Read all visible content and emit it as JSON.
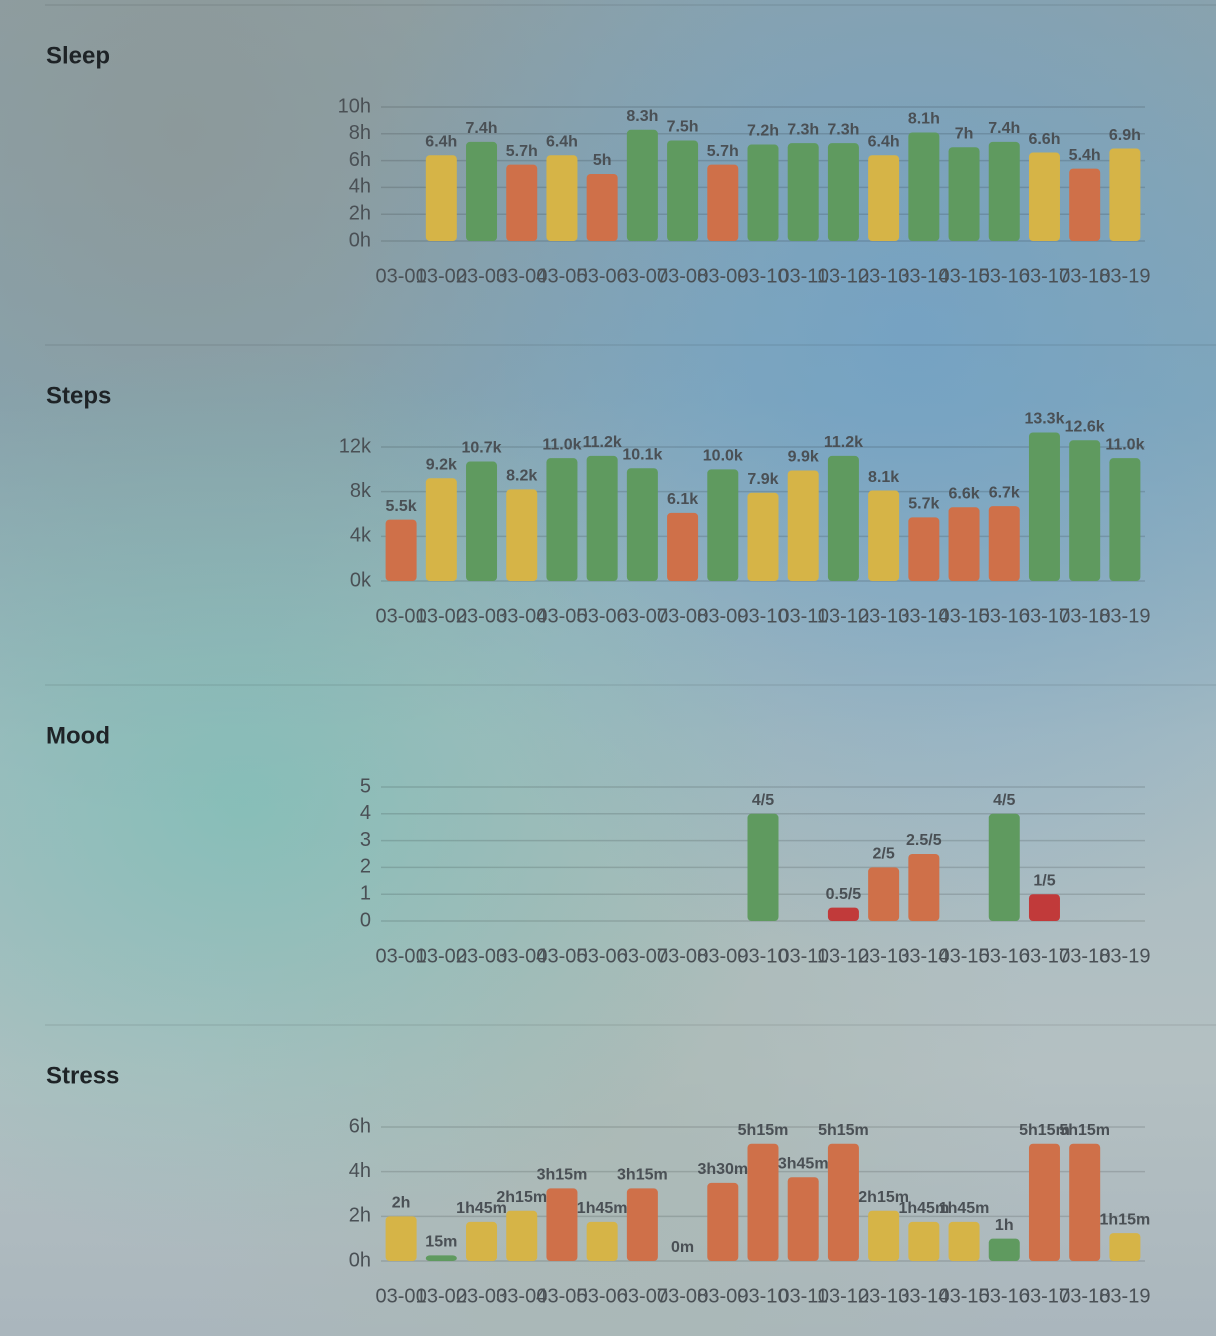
{
  "chart_data": [
    {
      "type": "bar",
      "title": "Sleep",
      "categories": [
        "03-01",
        "03-02",
        "03-03",
        "03-04",
        "03-05",
        "03-06",
        "03-07",
        "03-08",
        "03-09",
        "03-10",
        "03-11",
        "03-12",
        "03-13",
        "03-14",
        "03-15",
        "03-16",
        "03-17",
        "03-18",
        "03-19"
      ],
      "values": [
        null,
        6.4,
        7.4,
        5.7,
        6.4,
        5,
        8.3,
        7.5,
        5.7,
        7.2,
        7.3,
        7.3,
        6.4,
        8.1,
        7,
        7.4,
        6.6,
        5.4,
        6.9
      ],
      "value_labels": [
        null,
        "6.4h",
        "7.4h",
        "5.7h",
        "6.4h",
        "5h",
        "8.3h",
        "7.5h",
        "5.7h",
        "7.2h",
        "7.3h",
        "7.3h",
        "6.4h",
        "8.1h",
        "7h",
        "7.4h",
        "6.6h",
        "5.4h",
        "6.9h"
      ],
      "colors": [
        null,
        "#d6b447",
        "#5f9a5f",
        "#cf7049",
        "#d6b447",
        "#cf7049",
        "#5f9a5f",
        "#5f9a5f",
        "#cf7049",
        "#5f9a5f",
        "#5f9a5f",
        "#5f9a5f",
        "#d6b447",
        "#5f9a5f",
        "#5f9a5f",
        "#5f9a5f",
        "#d6b447",
        "#cf7049",
        "#d6b447"
      ],
      "ylim": [
        0,
        10
      ],
      "yticks": [
        {
          "value": 0,
          "label": "0h"
        },
        {
          "value": 2,
          "label": "2h"
        },
        {
          "value": 4,
          "label": "4h"
        },
        {
          "value": 6,
          "label": "6h"
        },
        {
          "value": 8,
          "label": "8h"
        },
        {
          "value": 10,
          "label": "10h"
        }
      ],
      "grid": true
    },
    {
      "type": "bar",
      "title": "Steps",
      "categories": [
        "03-01",
        "03-02",
        "03-03",
        "03-04",
        "03-05",
        "03-06",
        "03-07",
        "03-08",
        "03-09",
        "03-10",
        "03-11",
        "03-12",
        "03-13",
        "03-14",
        "03-15",
        "03-16",
        "03-17",
        "03-18",
        "03-19"
      ],
      "values": [
        5500,
        9200,
        10700,
        8200,
        11000,
        11200,
        10100,
        6100,
        10000,
        7900,
        9900,
        11200,
        8100,
        5700,
        6600,
        6700,
        13300,
        12600,
        11000
      ],
      "value_labels": [
        "5.5k",
        "9.2k",
        "10.7k",
        "8.2k",
        "11.0k",
        "11.2k",
        "10.1k",
        "6.1k",
        "10.0k",
        "7.9k",
        "9.9k",
        "11.2k",
        "8.1k",
        "5.7k",
        "6.6k",
        "6.7k",
        "13.3k",
        "12.6k",
        "11.0k"
      ],
      "colors": [
        "#cf7049",
        "#d6b447",
        "#5f9a5f",
        "#d6b447",
        "#5f9a5f",
        "#5f9a5f",
        "#5f9a5f",
        "#cf7049",
        "#5f9a5f",
        "#d6b447",
        "#d6b447",
        "#5f9a5f",
        "#d6b447",
        "#cf7049",
        "#cf7049",
        "#cf7049",
        "#5f9a5f",
        "#5f9a5f",
        "#5f9a5f"
      ],
      "ylim": [
        0,
        12000
      ],
      "yticks": [
        {
          "value": 0,
          "label": "0k"
        },
        {
          "value": 4000,
          "label": "4k"
        },
        {
          "value": 8000,
          "label": "8k"
        },
        {
          "value": 12000,
          "label": "12k"
        }
      ],
      "grid": true
    },
    {
      "type": "bar",
      "title": "Mood",
      "categories": [
        "03-01",
        "03-02",
        "03-03",
        "03-04",
        "03-05",
        "03-06",
        "03-07",
        "03-08",
        "03-09",
        "03-10",
        "03-11",
        "03-12",
        "03-13",
        "03-14",
        "03-15",
        "03-16",
        "03-17",
        "03-18",
        "03-19"
      ],
      "values": [
        null,
        null,
        null,
        null,
        null,
        null,
        null,
        null,
        null,
        4,
        null,
        0.5,
        2,
        2.5,
        null,
        4,
        1,
        null,
        null
      ],
      "value_labels": [
        null,
        null,
        null,
        null,
        null,
        null,
        null,
        null,
        null,
        "4/5",
        null,
        "0.5/5",
        "2/5",
        "2.5/5",
        null,
        "4/5",
        "1/5",
        null,
        null
      ],
      "colors": [
        null,
        null,
        null,
        null,
        null,
        null,
        null,
        null,
        null,
        "#5f9a5f",
        null,
        "#c13a3a",
        "#cf7049",
        "#cf7049",
        null,
        "#5f9a5f",
        "#c13a3a",
        null,
        null
      ],
      "ylim": [
        0,
        5
      ],
      "yticks": [
        0,
        1,
        2,
        3,
        4,
        5
      ],
      "grid": true
    },
    {
      "type": "bar",
      "title": "Stress",
      "categories": [
        "03-01",
        "03-02",
        "03-03",
        "03-04",
        "03-05",
        "03-06",
        "03-07",
        "03-08",
        "03-09",
        "03-10",
        "03-11",
        "03-12",
        "03-13",
        "03-14",
        "03-15",
        "03-16",
        "03-17",
        "03-18",
        "03-19"
      ],
      "values": [
        2,
        0.25,
        1.75,
        2.25,
        3.25,
        1.75,
        3.25,
        0,
        3.5,
        5.25,
        3.75,
        5.25,
        2.25,
        1.75,
        1.75,
        1,
        5.25,
        5.25,
        1.25
      ],
      "value_labels": [
        "2h",
        "15m",
        "1h45m",
        "2h15m",
        "3h15m",
        "1h45m",
        "3h15m",
        "0m",
        "3h30m",
        "5h15m",
        "3h45m",
        "5h15m",
        "2h15m",
        "1h45m",
        "1h45m",
        "1h",
        "5h15m",
        "5h15m",
        "1h15m"
      ],
      "colors": [
        "#d6b447",
        "#5f9a5f",
        "#d6b447",
        "#d6b447",
        "#cf7049",
        "#d6b447",
        "#cf7049",
        "#cf7049",
        "#cf7049",
        "#cf7049",
        "#cf7049",
        "#cf7049",
        "#d6b447",
        "#d6b447",
        "#d6b447",
        "#5f9a5f",
        "#cf7049",
        "#cf7049",
        "#d6b447"
      ],
      "ylim": [
        0,
        6
      ],
      "yticks": [
        {
          "value": 0,
          "label": "0h"
        },
        {
          "value": 2,
          "label": "2h"
        },
        {
          "value": 4,
          "label": "4h"
        },
        {
          "value": 6,
          "label": "6h"
        }
      ],
      "grid": true
    }
  ]
}
